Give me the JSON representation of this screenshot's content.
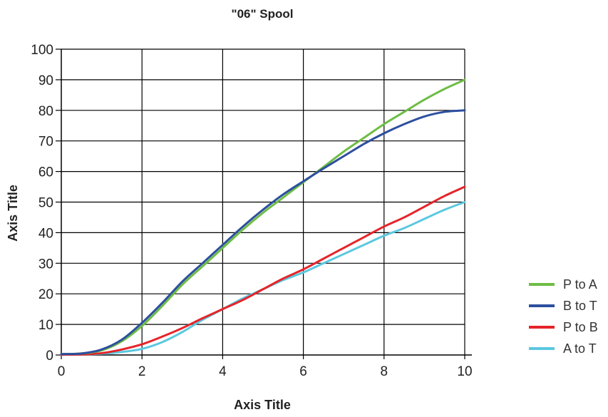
{
  "chart_data": {
    "type": "line",
    "title": "\"06\" Spool",
    "xlabel": "Axis Title",
    "ylabel": "Axis Title",
    "xlim": [
      0,
      10
    ],
    "ylim": [
      0,
      100
    ],
    "xticks": [
      "0",
      "2",
      "4",
      "6",
      "8",
      "10"
    ],
    "yticks": [
      "0",
      "10",
      "20",
      "30",
      "40",
      "50",
      "60",
      "70",
      "80",
      "90",
      "100"
    ],
    "grid": true,
    "legend_position": "right",
    "series": [
      {
        "name": "P to A",
        "color": "#6dbd45",
        "x": [
          0,
          0.5,
          1,
          1.5,
          2,
          2.5,
          3,
          3.5,
          4,
          4.5,
          5,
          5.5,
          6,
          6.5,
          7,
          7.5,
          8,
          8.5,
          9,
          9.5,
          10
        ],
        "y": [
          0.3,
          0.5,
          1.5,
          4.5,
          9.5,
          16,
          23,
          29,
          35,
          41,
          46.5,
          51.5,
          56.5,
          61.5,
          66.5,
          71,
          75.5,
          79.5,
          83.5,
          87,
          90
        ]
      },
      {
        "name": "B to T",
        "color": "#2d4f9e",
        "x": [
          0,
          0.5,
          1,
          1.5,
          2,
          2.5,
          3,
          3.5,
          4,
          4.5,
          5,
          5.5,
          6,
          6.5,
          7,
          7.5,
          8,
          8.5,
          9,
          9.5,
          10
        ],
        "y": [
          0.3,
          0.5,
          1.8,
          5,
          10.5,
          17,
          24,
          30,
          36,
          42,
          47.5,
          52.5,
          56.8,
          61,
          65,
          69,
          72.5,
          75.5,
          78,
          79.5,
          80
        ]
      },
      {
        "name": "P to B",
        "color": "#e5242a",
        "x": [
          0,
          0.5,
          1,
          1.5,
          2,
          2.5,
          3,
          3.5,
          4,
          4.5,
          5,
          5.5,
          6,
          6.5,
          7,
          7.5,
          8,
          8.5,
          9,
          9.5,
          10
        ],
        "y": [
          0.1,
          0.2,
          0.6,
          1.8,
          3.5,
          6,
          8.8,
          12,
          15,
          18,
          21.5,
          25,
          28,
          31.5,
          35,
          38.5,
          42,
          45,
          48.5,
          52,
          55
        ]
      },
      {
        "name": "A to T",
        "color": "#5bc8e0",
        "x": [
          0,
          0.5,
          1,
          1.5,
          2,
          2.5,
          3,
          3.5,
          4,
          4.5,
          5,
          5.5,
          6,
          6.5,
          7,
          7.5,
          8,
          8.5,
          9,
          9.5,
          10
        ],
        "y": [
          0.1,
          0.2,
          0.4,
          1,
          2,
          4.2,
          7.5,
          11.5,
          15,
          18.5,
          21.5,
          24.5,
          27,
          30,
          33,
          36,
          39,
          41.5,
          44.5,
          47.5,
          50
        ]
      }
    ]
  }
}
